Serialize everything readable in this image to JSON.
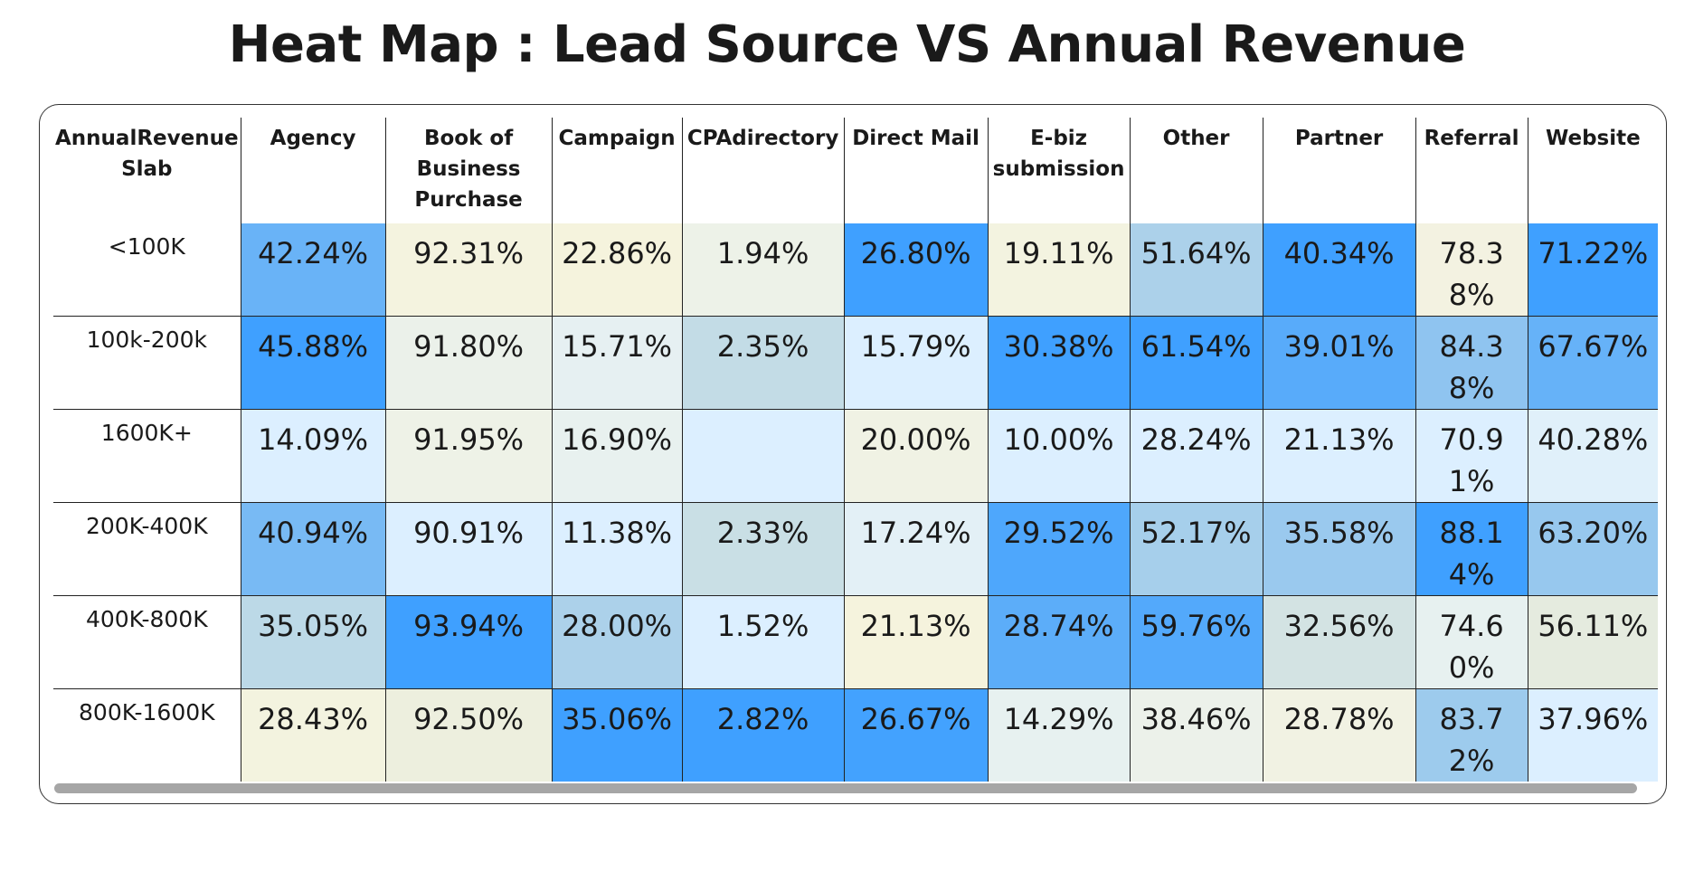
{
  "chart_data": {
    "type": "heatmap",
    "title": "Heat Map : Lead Source VS Annual Revenue",
    "row_header": "AnnualRevenue Slab",
    "columns": [
      "Agency",
      "Book of Business Purchase",
      "Campaign",
      "CPAdirectory",
      "Direct Mail",
      "E-biz submission",
      "Other",
      "Partner",
      "Referral",
      "Website"
    ],
    "rows": [
      {
        "label": "<100K",
        "cells": [
          "42.24%",
          "92.31%",
          "22.86%",
          "1.94%",
          "26.80%",
          "19.11%",
          "51.64%",
          "40.34%",
          "78.38%",
          "71.22%"
        ]
      },
      {
        "label": "100k-200k",
        "cells": [
          "45.88%",
          "91.80%",
          "15.71%",
          "2.35%",
          "15.79%",
          "30.38%",
          "61.54%",
          "39.01%",
          "84.38%",
          "67.67%"
        ]
      },
      {
        "label": "1600K+",
        "cells": [
          "14.09%",
          "91.95%",
          "16.90%",
          "",
          "20.00%",
          "10.00%",
          "28.24%",
          "21.13%",
          "70.91%",
          "40.28%"
        ]
      },
      {
        "label": "200K-400K",
        "cells": [
          "40.94%",
          "90.91%",
          "11.38%",
          "2.33%",
          "17.24%",
          "29.52%",
          "52.17%",
          "35.58%",
          "88.14%",
          "63.20%"
        ]
      },
      {
        "label": "400K-800K",
        "cells": [
          "35.05%",
          "93.94%",
          "28.00%",
          "1.52%",
          "21.13%",
          "28.74%",
          "59.76%",
          "32.56%",
          "74.60%",
          "56.11%"
        ]
      },
      {
        "label": "800K-1600K",
        "cells": [
          "28.43%",
          "92.50%",
          "35.06%",
          "2.82%",
          "26.67%",
          "14.29%",
          "38.46%",
          "28.78%",
          "83.72%",
          "37.96%"
        ]
      }
    ],
    "color_scale": {
      "low": "#dcefff",
      "mid": "#f6f3dc",
      "high": "#3fa0ff"
    }
  }
}
